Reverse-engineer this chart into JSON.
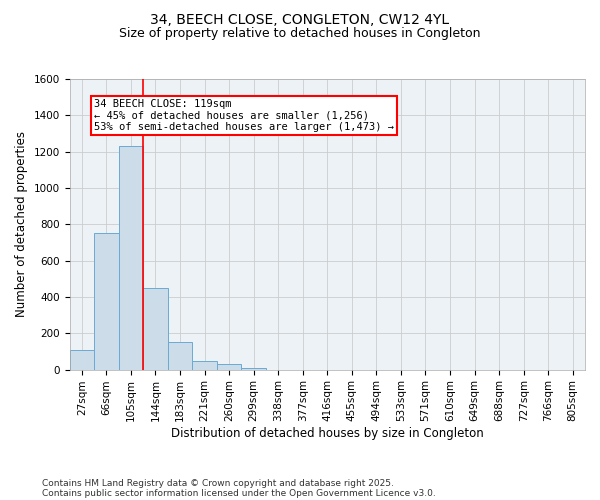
{
  "title_line1": "34, BEECH CLOSE, CONGLETON, CW12 4YL",
  "title_line2": "Size of property relative to detached houses in Congleton",
  "xlabel": "Distribution of detached houses by size in Congleton",
  "ylabel": "Number of detached properties",
  "categories": [
    "27sqm",
    "66sqm",
    "105sqm",
    "144sqm",
    "183sqm",
    "221sqm",
    "260sqm",
    "299sqm",
    "338sqm",
    "377sqm",
    "416sqm",
    "455sqm",
    "494sqm",
    "533sqm",
    "571sqm",
    "610sqm",
    "649sqm",
    "688sqm",
    "727sqm",
    "766sqm",
    "805sqm"
  ],
  "values": [
    110,
    750,
    1230,
    450,
    150,
    50,
    30,
    10,
    0,
    0,
    0,
    0,
    0,
    0,
    0,
    0,
    0,
    0,
    0,
    0,
    0
  ],
  "bar_color": "#ccdce8",
  "bar_edge_color": "#6aaad4",
  "vline_color": "red",
  "vline_position": 2.5,
  "annotation_line1": "34 BEECH CLOSE: 119sqm",
  "annotation_line2": "← 45% of detached houses are smaller (1,256)",
  "annotation_line3": "53% of semi-detached houses are larger (1,473) →",
  "annotation_box_color": "red",
  "ylim": [
    0,
    1600
  ],
  "yticks": [
    0,
    200,
    400,
    600,
    800,
    1000,
    1200,
    1400,
    1600
  ],
  "grid_color": "#cccccc",
  "background_color": "#edf2f7",
  "footnote_line1": "Contains HM Land Registry data © Crown copyright and database right 2025.",
  "footnote_line2": "Contains public sector information licensed under the Open Government Licence v3.0.",
  "title_fontsize": 10,
  "subtitle_fontsize": 9,
  "axis_label_fontsize": 8.5,
  "tick_fontsize": 7.5,
  "annotation_fontsize": 7.5,
  "footnote_fontsize": 6.5
}
